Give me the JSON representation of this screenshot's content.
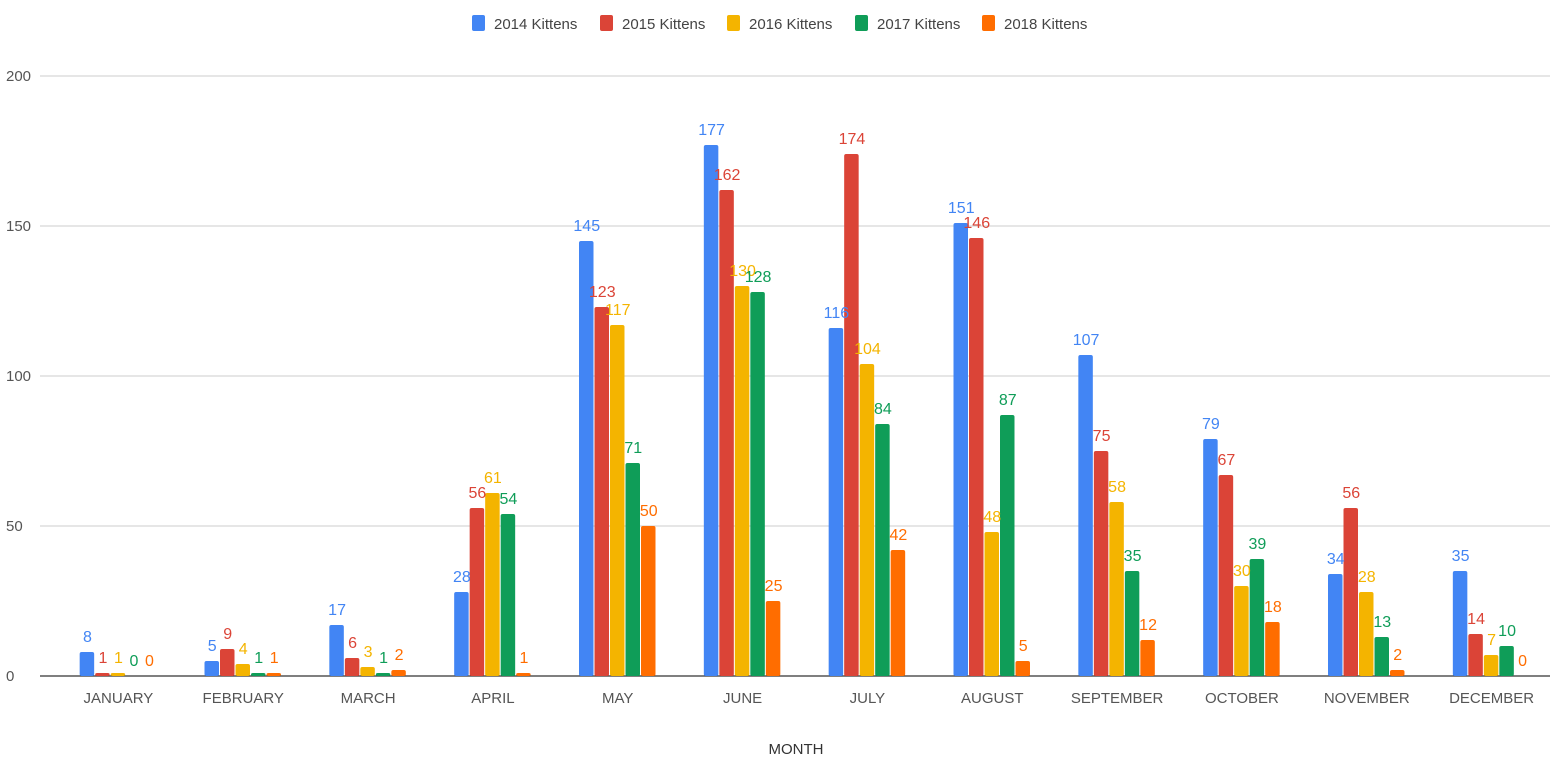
{
  "chart_data": {
    "type": "bar",
    "title": "",
    "xlabel": "MONTH",
    "ylabel": "",
    "ylim": [
      0,
      200
    ],
    "yticks": [
      0,
      50,
      100,
      150,
      200
    ],
    "grid": true,
    "legend_position": "top-center",
    "categories": [
      "JANUARY",
      "FEBRUARY",
      "MARCH",
      "APRIL",
      "MAY",
      "JUNE",
      "JULY",
      "AUGUST",
      "SEPTEMBER",
      "OCTOBER",
      "NOVEMBER",
      "DECEMBER"
    ],
    "series": [
      {
        "name": "2014 Kittens",
        "color": "#4285f4",
        "values": [
          8,
          5,
          17,
          28,
          145,
          177,
          116,
          151,
          107,
          79,
          34,
          35
        ]
      },
      {
        "name": "2015 Kittens",
        "color": "#db4437",
        "values": [
          1,
          9,
          6,
          56,
          123,
          162,
          174,
          146,
          75,
          67,
          56,
          14
        ]
      },
      {
        "name": "2016 Kittens",
        "color": "#f4b400",
        "values": [
          1,
          4,
          3,
          61,
          117,
          130,
          104,
          48,
          58,
          30,
          28,
          7
        ]
      },
      {
        "name": "2017 Kittens",
        "color": "#0f9d58",
        "values": [
          0,
          1,
          1,
          54,
          71,
          128,
          84,
          87,
          35,
          39,
          13,
          10
        ]
      },
      {
        "name": "2018 Kittens",
        "color": "#ff6d00",
        "values": [
          0,
          1,
          2,
          1,
          50,
          25,
          42,
          5,
          12,
          18,
          2,
          0
        ]
      }
    ]
  }
}
